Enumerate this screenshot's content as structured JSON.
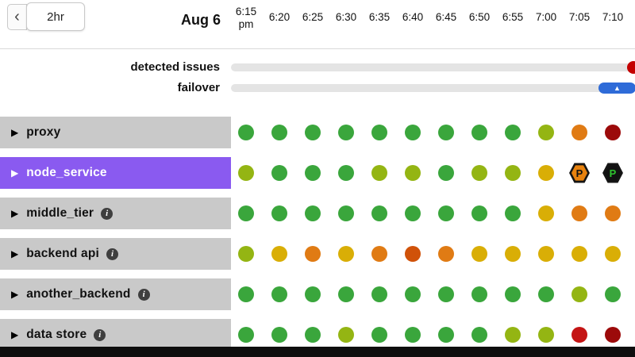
{
  "header": {
    "back_icon": "‹",
    "range_label": "2hr",
    "date_label": "Aug 6",
    "ticks": [
      {
        "label": "6:15",
        "sub": "pm"
      },
      {
        "label": "6:20",
        "sub": ""
      },
      {
        "label": "6:25",
        "sub": ""
      },
      {
        "label": "6:30",
        "sub": ""
      },
      {
        "label": "6:35",
        "sub": ""
      },
      {
        "label": "6:40",
        "sub": ""
      },
      {
        "label": "6:45",
        "sub": ""
      },
      {
        "label": "6:50",
        "sub": ""
      },
      {
        "label": "6:55",
        "sub": ""
      },
      {
        "label": "7:00",
        "sub": ""
      },
      {
        "label": "7:05",
        "sub": ""
      },
      {
        "label": "7:10",
        "sub": ""
      }
    ]
  },
  "icons": {
    "expand": "▶",
    "failover_marker": "▲",
    "info": "i"
  },
  "indicators": {
    "detected_issues": {
      "label": "detected issues",
      "marker_color": "#c40000"
    },
    "failover": {
      "label": "failover",
      "marker_color": "#2e6bd8"
    }
  },
  "status_palette": {
    "green": "#3aa63c",
    "yellow_green": "#94b513",
    "gold": "#d9ae06",
    "orange": "#e07b14",
    "orange_red": "#d05209",
    "red": "#c41414",
    "dark_red": "#9c0a0a",
    "selected_row": "#8a5af0",
    "row_gray": "#c9c9c9"
  },
  "services": [
    {
      "label": "proxy",
      "selected": false,
      "info": false,
      "cells": [
        {
          "t": "dot",
          "c": "#3aa63c"
        },
        {
          "t": "dot",
          "c": "#3aa63c"
        },
        {
          "t": "dot",
          "c": "#3aa63c"
        },
        {
          "t": "dot",
          "c": "#3aa63c"
        },
        {
          "t": "dot",
          "c": "#3aa63c"
        },
        {
          "t": "dot",
          "c": "#3aa63c"
        },
        {
          "t": "dot",
          "c": "#3aa63c"
        },
        {
          "t": "dot",
          "c": "#3aa63c"
        },
        {
          "t": "dot",
          "c": "#3aa63c"
        },
        {
          "t": "dot",
          "c": "#94b513"
        },
        {
          "t": "dot",
          "c": "#e07b14"
        },
        {
          "t": "dot",
          "c": "#9c0a0a"
        }
      ]
    },
    {
      "label": "node_service",
      "selected": true,
      "info": false,
      "cells": [
        {
          "t": "dot",
          "c": "#94b513"
        },
        {
          "t": "dot",
          "c": "#3aa63c"
        },
        {
          "t": "dot",
          "c": "#3aa63c"
        },
        {
          "t": "dot",
          "c": "#3aa63c"
        },
        {
          "t": "dot",
          "c": "#94b513"
        },
        {
          "t": "dot",
          "c": "#94b513"
        },
        {
          "t": "dot",
          "c": "#3aa63c"
        },
        {
          "t": "dot",
          "c": "#94b513"
        },
        {
          "t": "dot",
          "c": "#94b513"
        },
        {
          "t": "dot",
          "c": "#d9ae06"
        },
        {
          "t": "badge",
          "label": "P",
          "bg": "#e8820e",
          "fg": "#111111"
        },
        {
          "t": "badge",
          "label": "P",
          "bg": "#111111",
          "fg": "#2ec42e"
        }
      ]
    },
    {
      "label": "middle_tier",
      "selected": false,
      "info": true,
      "cells": [
        {
          "t": "dot",
          "c": "#3aa63c"
        },
        {
          "t": "dot",
          "c": "#3aa63c"
        },
        {
          "t": "dot",
          "c": "#3aa63c"
        },
        {
          "t": "dot",
          "c": "#3aa63c"
        },
        {
          "t": "dot",
          "c": "#3aa63c"
        },
        {
          "t": "dot",
          "c": "#3aa63c"
        },
        {
          "t": "dot",
          "c": "#3aa63c"
        },
        {
          "t": "dot",
          "c": "#3aa63c"
        },
        {
          "t": "dot",
          "c": "#3aa63c"
        },
        {
          "t": "dot",
          "c": "#d9ae06"
        },
        {
          "t": "dot",
          "c": "#e07b14"
        },
        {
          "t": "dot",
          "c": "#e07b14"
        }
      ]
    },
    {
      "label": "backend api",
      "selected": false,
      "info": true,
      "cells": [
        {
          "t": "dot",
          "c": "#94b513"
        },
        {
          "t": "dot",
          "c": "#d9ae06"
        },
        {
          "t": "dot",
          "c": "#e07b14"
        },
        {
          "t": "dot",
          "c": "#d9ae06"
        },
        {
          "t": "dot",
          "c": "#e07b14"
        },
        {
          "t": "dot",
          "c": "#d05209"
        },
        {
          "t": "dot",
          "c": "#e07b14"
        },
        {
          "t": "dot",
          "c": "#d9ae06"
        },
        {
          "t": "dot",
          "c": "#d9ae06"
        },
        {
          "t": "dot",
          "c": "#d9ae06"
        },
        {
          "t": "dot",
          "c": "#d9ae06"
        },
        {
          "t": "dot",
          "c": "#d9ae06"
        }
      ]
    },
    {
      "label": "another_backend",
      "selected": false,
      "info": true,
      "cells": [
        {
          "t": "dot",
          "c": "#3aa63c"
        },
        {
          "t": "dot",
          "c": "#3aa63c"
        },
        {
          "t": "dot",
          "c": "#3aa63c"
        },
        {
          "t": "dot",
          "c": "#3aa63c"
        },
        {
          "t": "dot",
          "c": "#3aa63c"
        },
        {
          "t": "dot",
          "c": "#3aa63c"
        },
        {
          "t": "dot",
          "c": "#3aa63c"
        },
        {
          "t": "dot",
          "c": "#3aa63c"
        },
        {
          "t": "dot",
          "c": "#3aa63c"
        },
        {
          "t": "dot",
          "c": "#3aa63c"
        },
        {
          "t": "dot",
          "c": "#94b513"
        },
        {
          "t": "dot",
          "c": "#3aa63c"
        }
      ]
    },
    {
      "label": "data store",
      "selected": false,
      "info": true,
      "cells": [
        {
          "t": "dot",
          "c": "#3aa63c"
        },
        {
          "t": "dot",
          "c": "#3aa63c"
        },
        {
          "t": "dot",
          "c": "#3aa63c"
        },
        {
          "t": "dot",
          "c": "#94b513"
        },
        {
          "t": "dot",
          "c": "#3aa63c"
        },
        {
          "t": "dot",
          "c": "#3aa63c"
        },
        {
          "t": "dot",
          "c": "#3aa63c"
        },
        {
          "t": "dot",
          "c": "#3aa63c"
        },
        {
          "t": "dot",
          "c": "#94b513"
        },
        {
          "t": "dot",
          "c": "#94b513"
        },
        {
          "t": "dot",
          "c": "#c41414"
        },
        {
          "t": "dot",
          "c": "#9c0a0a"
        }
      ]
    }
  ]
}
